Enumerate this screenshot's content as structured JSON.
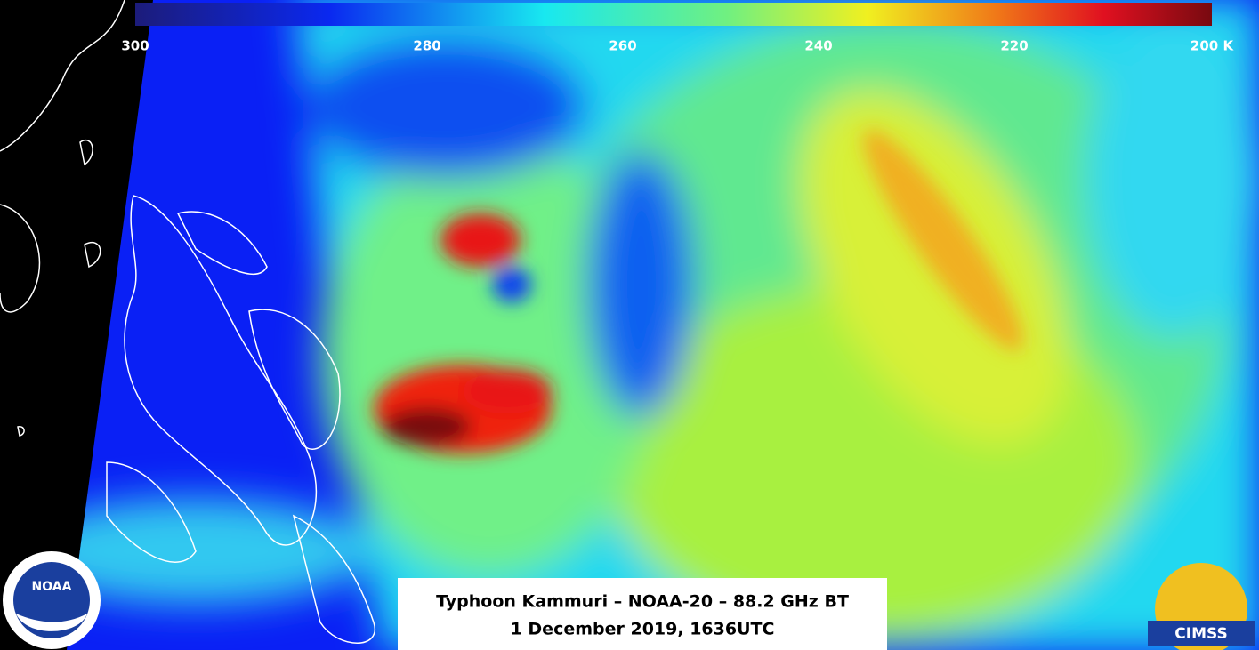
{
  "colorbar": {
    "labels": [
      "300",
      "280",
      "260",
      "240",
      "220",
      "200 K"
    ]
  },
  "caption": {
    "line1": "Typhoon Kammuri  – NOAA-20 – 88.2 GHz BT",
    "line2": "1 December 2019, 1636UTC"
  },
  "logos": {
    "left": "NOAA",
    "right": "CIMSS"
  }
}
